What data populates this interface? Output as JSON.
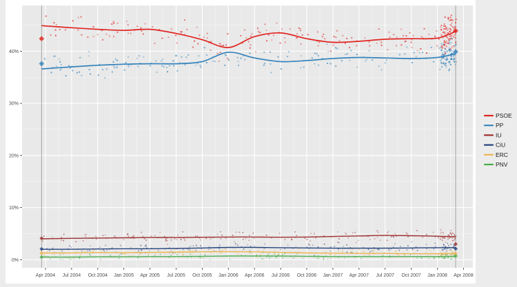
{
  "page": {
    "background": "#ececec",
    "card_background": "#ffffff",
    "panel_background": "#e9e9e9",
    "grid_color": "#ffffff",
    "axis_text_color": "#4d4d4d",
    "event_line_color": "#a3a3a3"
  },
  "chart_data": {
    "type": "scatter",
    "title": "",
    "xlabel": "",
    "ylabel": "",
    "grid": true,
    "legend_position": "right-outside",
    "x_tick_labels": [
      "Apr 2004",
      "Jul 2004",
      "Oct 2004",
      "Jan 2005",
      "Apr 2005",
      "Jul 2005",
      "Oct 2005",
      "Jan 2006",
      "Apr 2006",
      "Jul 2006",
      "Oct 2006",
      "Jan 2007",
      "Apr 2007",
      "Jul 2007",
      "Oct 2007",
      "Jan 2008",
      "Apr 2008"
    ],
    "y_tick_labels": [
      "0%",
      "10%",
      "20%",
      "30%",
      "40%"
    ],
    "y_tick_values": [
      0,
      10,
      20,
      30,
      40
    ],
    "ylim": [
      0,
      48.8
    ],
    "vertical_marker_months": [
      -0.45,
      47.1
    ],
    "trend_months": [
      -0.4,
      3,
      6,
      9,
      12,
      15,
      18,
      21,
      24,
      27,
      30,
      33,
      36,
      39,
      42,
      45,
      47.1
    ],
    "series": [
      {
        "name": "PSOE",
        "color": "#e02420",
        "trend_values": [
          44.9,
          44.5,
          44.2,
          44.0,
          44.2,
          43.4,
          42.2,
          40.7,
          42.8,
          43.5,
          42.4,
          41.7,
          41.9,
          42.3,
          42.4,
          42.5,
          43.8
        ],
        "election_2004": 42.4,
        "election_2008": 43.9,
        "scatter": {
          "count": 175,
          "spread": 1.25,
          "cluster_count": 85,
          "cluster_spread": 1.5,
          "size": 2.0
        }
      },
      {
        "name": "PP",
        "color": "#3584bb",
        "trend_values": [
          36.6,
          37.0,
          37.3,
          37.5,
          37.6,
          37.6,
          38.0,
          39.8,
          38.7,
          38.0,
          38.2,
          38.6,
          38.8,
          38.7,
          38.6,
          38.8,
          39.5
        ],
        "election_2004": 37.6,
        "election_2008": 39.9,
        "scatter": {
          "count": 165,
          "spread": 1.1,
          "cluster_count": 80,
          "cluster_spread": 1.25,
          "size": 2.0
        }
      },
      {
        "name": "IU",
        "color": "#9e2f2f",
        "trend_values": [
          4.0,
          4.1,
          4.15,
          4.2,
          4.25,
          4.25,
          4.3,
          4.35,
          4.35,
          4.3,
          4.35,
          4.45,
          4.55,
          4.65,
          4.6,
          4.5,
          4.4
        ],
        "election_2004": 4.1,
        "election_2008": 3.0,
        "scatter": {
          "count": 150,
          "spread": 0.55,
          "cluster_count": 30,
          "cluster_spread": 0.5,
          "size": 1.6
        }
      },
      {
        "name": "CiU",
        "color": "#27447d",
        "trend_values": [
          2.0,
          2.0,
          2.05,
          2.1,
          2.1,
          2.15,
          2.25,
          2.35,
          2.35,
          2.3,
          2.25,
          2.2,
          2.2,
          2.2,
          2.25,
          2.3,
          2.3
        ],
        "election_2004": 2.05,
        "election_2008": 2.1,
        "scatter": {
          "count": 140,
          "spread": 0.45,
          "cluster_count": 25,
          "cluster_spread": 0.4,
          "size": 1.6
        }
      },
      {
        "name": "ERC",
        "color": "#eeb44e",
        "trend_values": [
          1.3,
          1.3,
          1.35,
          1.35,
          1.4,
          1.45,
          1.5,
          1.55,
          1.5,
          1.4,
          1.3,
          1.25,
          1.2,
          1.2,
          1.15,
          1.15,
          1.15
        ],
        "election_2004": 1.25,
        "election_2008": 1.15,
        "scatter": {
          "count": 130,
          "spread": 0.4,
          "cluster_count": 22,
          "cluster_spread": 0.35,
          "size": 1.6
        }
      },
      {
        "name": "PNV",
        "color": "#4bad4b",
        "trend_values": [
          0.5,
          0.5,
          0.55,
          0.55,
          0.6,
          0.6,
          0.65,
          0.7,
          0.7,
          0.7,
          0.65,
          0.6,
          0.6,
          0.6,
          0.6,
          0.6,
          0.6
        ],
        "election_2004": 0.5,
        "election_2008": 0.7,
        "scatter": {
          "count": 130,
          "spread": 0.35,
          "cluster_count": 22,
          "cluster_spread": 0.3,
          "size": 1.6
        }
      }
    ]
  }
}
